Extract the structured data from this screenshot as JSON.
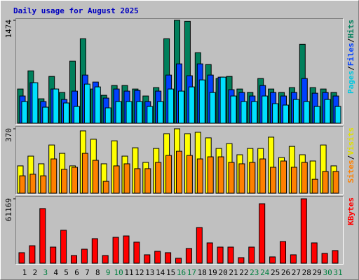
{
  "title": "Daily usage for August 2025",
  "legend_separator": "/",
  "categories": [
    "1",
    "2",
    "3",
    "4",
    "5",
    "6",
    "7",
    "8",
    "9",
    "10",
    "11",
    "12",
    "13",
    "14",
    "15",
    "16",
    "17",
    "18",
    "19",
    "20",
    "21",
    "22",
    "23",
    "24",
    "25",
    "26",
    "27",
    "28",
    "29",
    "30",
    "31"
  ],
  "category_colors": [
    "#000000",
    "#000000",
    "#008040",
    "#000000",
    "#000000",
    "#000000",
    "#000000",
    "#000000",
    "#008040",
    "#008040",
    "#000000",
    "#000000",
    "#000000",
    "#000000",
    "#000000",
    "#008040",
    "#008040",
    "#000000",
    "#000000",
    "#000000",
    "#000000",
    "#000000",
    "#008040",
    "#008040",
    "#000000",
    "#000000",
    "#000000",
    "#000000",
    "#000000",
    "#008040",
    "#008040"
  ],
  "chart_data": [
    {
      "type": "bar",
      "ylim": [
        0,
        1474
      ],
      "yticks": [
        1474
      ],
      "series": [
        {
          "name": "Hits",
          "color": "#00805c",
          "label_color": "#00805c",
          "values": [
            490,
            750,
            350,
            670,
            440,
            890,
            1210,
            490,
            400,
            540,
            540,
            490,
            390,
            510,
            1210,
            1474,
            1460,
            1010,
            840,
            640,
            670,
            490,
            440,
            640,
            490,
            440,
            510,
            1130,
            510,
            490,
            440
          ]
        },
        {
          "name": "Files",
          "color": "#0040ff",
          "label_color": "#0040ff",
          "values": [
            390,
            580,
            310,
            490,
            340,
            460,
            690,
            590,
            360,
            490,
            460,
            470,
            310,
            460,
            690,
            850,
            680,
            850,
            690,
            660,
            480,
            440,
            390,
            540,
            440,
            390,
            440,
            640,
            430,
            440,
            390
          ]
        },
        {
          "name": "Pages",
          "color": "#00e0ff",
          "label_color": "#00c8e0",
          "values": [
            310,
            580,
            230,
            490,
            290,
            240,
            560,
            520,
            220,
            310,
            310,
            310,
            240,
            310,
            490,
            460,
            520,
            620,
            440,
            660,
            390,
            310,
            310,
            390,
            280,
            260,
            340,
            310,
            240,
            340,
            240
          ]
        }
      ]
    },
    {
      "type": "bar",
      "ylim": [
        0,
        370
      ],
      "yticks": [
        370
      ],
      "series": [
        {
          "name": "Visits",
          "color": "#ffff00",
          "label_color": "#e0e000",
          "values": [
            157,
            213,
            169,
            277,
            229,
            157,
            358,
            310,
            169,
            301,
            213,
            261,
            177,
            257,
            342,
            370,
            342,
            350,
            318,
            257,
            285,
            221,
            257,
            257,
            322,
            205,
            269,
            221,
            185,
            277,
            157
          ]
        },
        {
          "name": "Sites",
          "color": "#ff8000",
          "label_color": "#ff8000",
          "values": [
            100,
            109,
            100,
            197,
            137,
            149,
            229,
            189,
            68,
            157,
            169,
            141,
            141,
            177,
            217,
            241,
            217,
            197,
            209,
            209,
            177,
            169,
            177,
            197,
            149,
            185,
            149,
            177,
            80,
            125,
            125
          ]
        }
      ]
    },
    {
      "type": "bar",
      "ylim": [
        0,
        61169
      ],
      "yticks": [
        61169
      ],
      "series": [
        {
          "name": "KBytes",
          "color": "#ff0000",
          "label_color": "#ff0000",
          "values": [
            10000,
            16600,
            51900,
            15300,
            31300,
            7300,
            13300,
            23300,
            7300,
            24600,
            25900,
            20000,
            8000,
            11300,
            10000,
            4700,
            14000,
            33900,
            19300,
            15300,
            15300,
            5300,
            15300,
            56500,
            6000,
            20600,
            8000,
            61169,
            19300,
            9300,
            12000
          ]
        }
      ]
    }
  ]
}
